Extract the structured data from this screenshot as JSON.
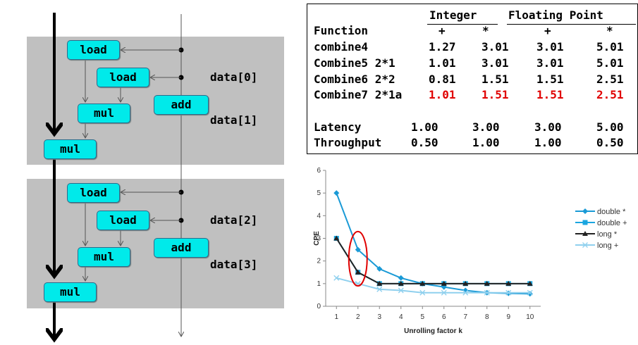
{
  "diagram": {
    "blocks": [
      {
        "load_outer": "load",
        "load_inner": "load",
        "mul_inner": "mul",
        "add": "add",
        "mul_outer": "mul",
        "data_a": "data[0]",
        "data_b": "data[1]"
      },
      {
        "load_outer": "load",
        "load_inner": "load",
        "mul_inner": "mul",
        "add": "add",
        "mul_outer": "mul",
        "data_a": "data[2]",
        "data_b": "data[3]"
      }
    ]
  },
  "table": {
    "group_integer": "Integer",
    "group_float": "Floating Point",
    "col_function": "Function",
    "col_ops": [
      "+",
      "*",
      "+",
      "*"
    ],
    "rows": [
      {
        "name": "combine4",
        "values": [
          "1.27",
          "3.01",
          "3.01",
          "5.01"
        ],
        "highlight": false
      },
      {
        "name": "Combine5 2*1",
        "values": [
          "1.01",
          "3.01",
          "3.01",
          "5.01"
        ],
        "highlight": false
      },
      {
        "name": "Combine6 2*2",
        "values": [
          "0.81",
          "1.51",
          "1.51",
          "2.51"
        ],
        "highlight": false
      },
      {
        "name": "Combine7 2*1a",
        "values": [
          "1.01",
          "1.51",
          "1.51",
          "2.51"
        ],
        "highlight": true
      }
    ],
    "latency": {
      "name": "Latency",
      "values": [
        "1.00",
        "3.00",
        "3.00",
        "5.00"
      ]
    },
    "throughput": {
      "name": "Throughput",
      "values": [
        "0.50",
        "1.00",
        "1.00",
        "0.50"
      ]
    },
    "highlight_color": "#e00000"
  },
  "chart_data": {
    "type": "line",
    "xlabel": "Unrolling factor k",
    "ylabel": "CPE",
    "x": [
      1,
      2,
      3,
      4,
      5,
      6,
      7,
      8,
      9,
      10
    ],
    "ylim": [
      0,
      6
    ],
    "yticks": [
      0,
      1,
      2,
      3,
      4,
      5,
      6
    ],
    "series": [
      {
        "name": "double *",
        "values": [
          5.0,
          2.5,
          1.65,
          1.25,
          1.0,
          0.85,
          0.7,
          0.6,
          0.57,
          0.55
        ],
        "color": "#1a9ad6",
        "marker": "diamond"
      },
      {
        "name": "double +",
        "values": [
          3.0,
          1.5,
          1.0,
          1.0,
          1.0,
          1.0,
          1.0,
          1.0,
          1.0,
          1.0
        ],
        "color": "#1aa6e0",
        "marker": "square"
      },
      {
        "name": "long *",
        "values": [
          3.0,
          1.5,
          1.0,
          1.0,
          1.0,
          1.0,
          1.0,
          1.0,
          1.0,
          1.0
        ],
        "color": "#222222",
        "marker": "triangle"
      },
      {
        "name": "long +",
        "values": [
          1.25,
          1.0,
          0.75,
          0.7,
          0.6,
          0.6,
          0.6,
          0.6,
          0.6,
          0.6
        ],
        "color": "#8fd0ee",
        "marker": "x"
      }
    ],
    "legend_position": "right",
    "highlight_x": 2,
    "highlight_color": "#e00000"
  }
}
